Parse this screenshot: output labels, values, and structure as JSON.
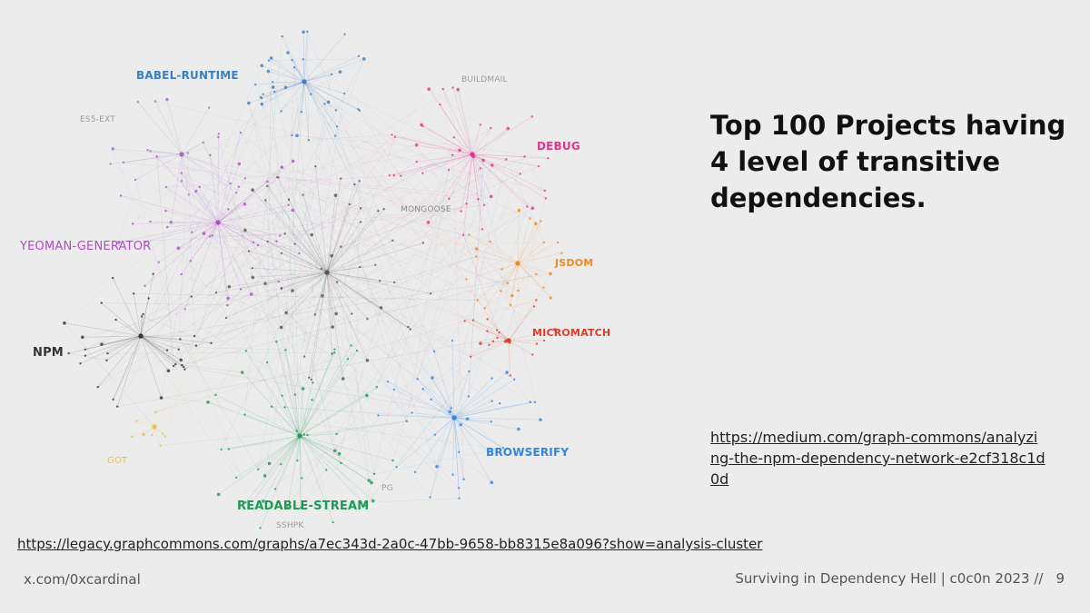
{
  "slide": {
    "title_lines": [
      "Top 100 Projects having",
      "4 level of transitive",
      "dependencies."
    ],
    "medium_link": "https://medium.com/graph-commons/analyzing-the-npm-dependency-network-e2cf318c1d0d",
    "legacy_link": "https://legacy.graphcommons.com/graphs/a7ec343d-2a0c-47bb-9658-bb8315e8a096?show=analysis-cluster",
    "footer_handle": "x.com/0xcardinal",
    "footer_talk": "Surviving in Dependency Hell | c0c0n 2023 //",
    "page_number": "9"
  },
  "graph": {
    "clusters": [
      {
        "id": "babel",
        "label": "BABEL-RUNTIME",
        "color": "#3b7fc0"
      },
      {
        "id": "es5",
        "label": "ES5-EXT",
        "color": "#9a9a9a"
      },
      {
        "id": "buildmail",
        "label": "BUILDMAIL",
        "color": "#9a9a9a"
      },
      {
        "id": "debug",
        "label": "DEBUG",
        "color": "#e0368a"
      },
      {
        "id": "mongoose",
        "label": "MONGOOSE",
        "color": "#8a8a8a"
      },
      {
        "id": "yeoman",
        "label": "YEOMAN-GENERATOR",
        "color": "#b04cc8"
      },
      {
        "id": "jsdom",
        "label": "JSDOM",
        "color": "#f08a22"
      },
      {
        "id": "micromatch",
        "label": "MICROMATCH",
        "color": "#e03a2a"
      },
      {
        "id": "npm",
        "label": "NPM",
        "color": "#333333"
      },
      {
        "id": "browserify",
        "label": "BROWSERIFY",
        "color": "#2f86e0"
      },
      {
        "id": "got",
        "label": "GOT",
        "color": "#e8c24a"
      },
      {
        "id": "pg",
        "label": "PG",
        "color": "#9a9a9a"
      },
      {
        "id": "readable",
        "label": "READABLE-STREAM",
        "color": "#1f9a55"
      },
      {
        "id": "sshpk",
        "label": "SSHPK",
        "color": "#9a9a9a"
      }
    ]
  }
}
